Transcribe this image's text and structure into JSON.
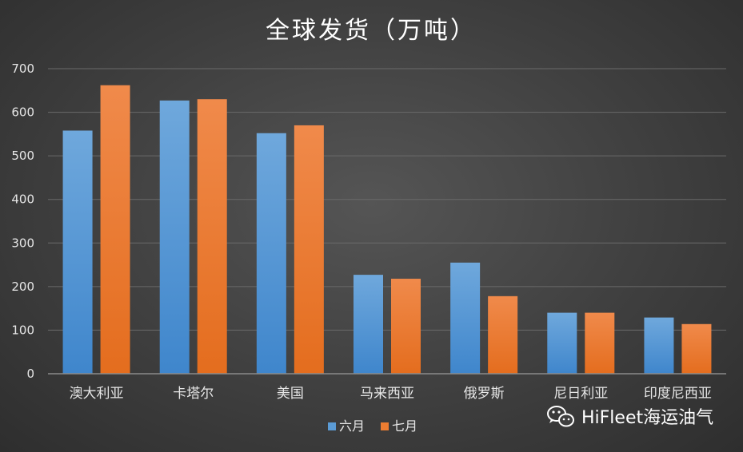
{
  "chart_data": {
    "type": "bar",
    "title": "全球发货（万吨）",
    "categories": [
      "澳大利亚",
      "卡塔尔",
      "美国",
      "马来西亚",
      "俄罗斯",
      "尼日利亚",
      "印度尼西亚"
    ],
    "series": [
      {
        "name": "六月",
        "values": [
          558,
          627,
          552,
          227,
          255,
          140,
          129
        ],
        "color": "#5b9bd5"
      },
      {
        "name": "七月",
        "values": [
          662,
          630,
          570,
          218,
          178,
          140,
          114
        ],
        "color": "#ed7d31"
      }
    ],
    "yticks": [
      0,
      100,
      200,
      300,
      400,
      500,
      600,
      700
    ],
    "ylim": [
      0,
      700
    ],
    "grid": true,
    "legend": "bottom-center"
  },
  "watermark": {
    "text": "HiFleet海运油气",
    "icon": "wechat-icon"
  }
}
